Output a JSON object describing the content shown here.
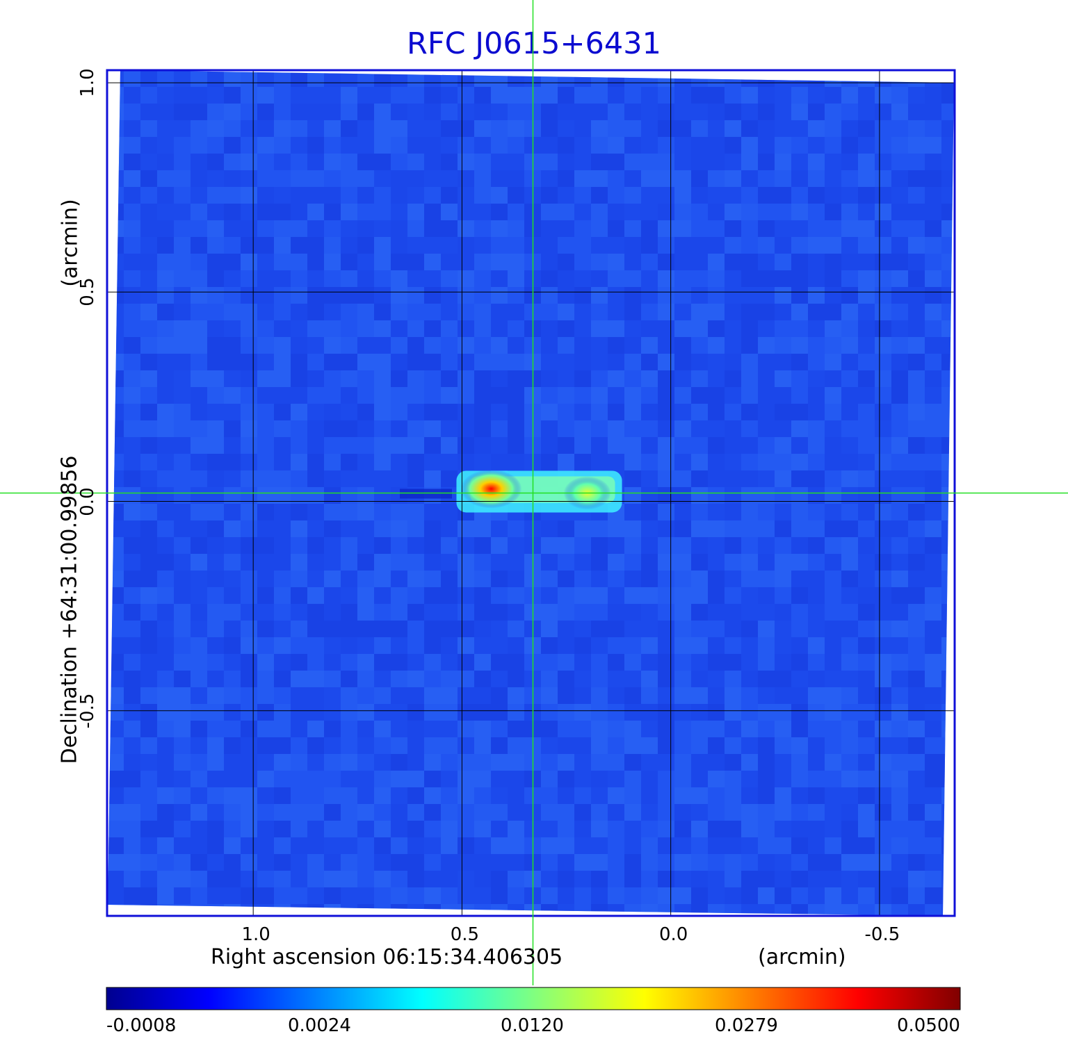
{
  "title": "RFC J0615+6431",
  "chart_data": {
    "type": "heatmap",
    "title": "RFC J0615+6431",
    "xlabel": "Right ascension  06:15:34.406305",
    "xunit": "(arcmin)",
    "ylabel": "Declination  +64:31:00.99856",
    "yunit": "(arcmin)",
    "xlim": [
      1.35,
      -0.68
    ],
    "ylim": [
      -0.99,
      1.03
    ],
    "x_ticks": [
      1.0,
      0.5,
      0.0,
      -0.5
    ],
    "x_tick_labels": [
      "1.0",
      "0.5",
      "0.0",
      "-0.5"
    ],
    "y_ticks": [
      1.0,
      0.5,
      0.0,
      -0.5
    ],
    "y_tick_labels": [
      "1.0",
      "0.5",
      "0.0",
      "-0.5"
    ],
    "grid": true,
    "crosshair": {
      "x": 0.33,
      "y": 0.02
    },
    "colormap": "jet",
    "colorbar_ticks": [
      "-0.0008",
      "0.0024",
      "0.0120",
      "0.0279",
      "0.0500"
    ],
    "colorbar_range": [
      -0.0008,
      0.05
    ],
    "sources": [
      {
        "x": 0.43,
        "y": 0.03,
        "peak": 0.05
      },
      {
        "x": 0.2,
        "y": 0.02,
        "peak": 0.024
      }
    ]
  },
  "colors": {
    "frame": "#1010d8",
    "title": "#0b0bd0",
    "background_field": "#1e50f0",
    "crosshair": "#22e022",
    "grid": "#000000"
  }
}
